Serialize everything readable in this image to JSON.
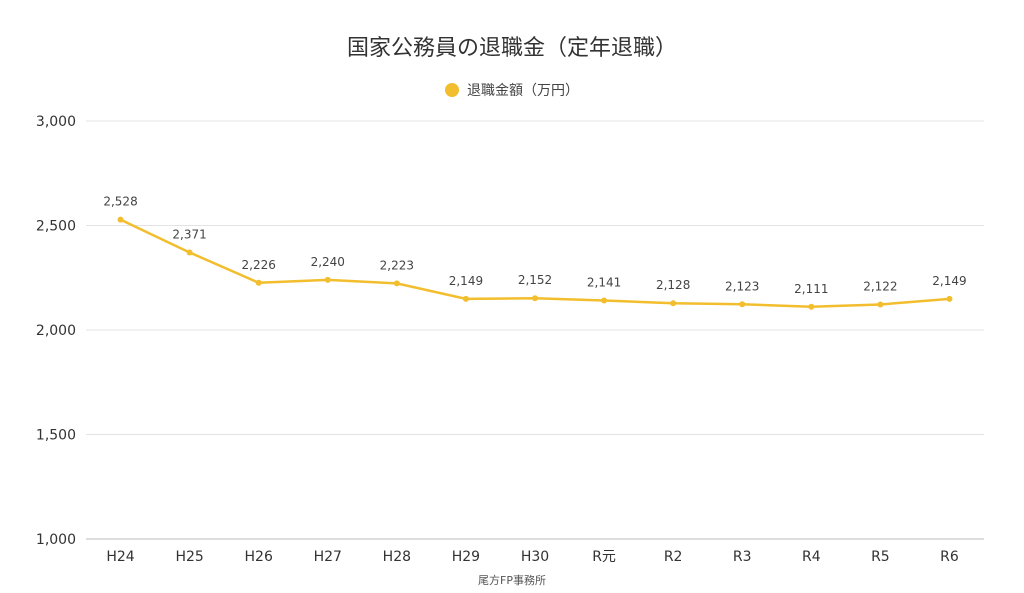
{
  "chart_data": {
    "type": "line",
    "title": "国家公務員の退職金（定年退職）",
    "categories": [
      "H24",
      "H25",
      "H26",
      "H27",
      "H28",
      "H29",
      "H30",
      "R元",
      "R2",
      "R3",
      "R4",
      "R5",
      "R6"
    ],
    "series": [
      {
        "name": "退職金額（万円）",
        "values": [
          2528,
          2371,
          2226,
          2240,
          2223,
          2149,
          2152,
          2141,
          2128,
          2123,
          2111,
          2122,
          2149
        ],
        "color": "#F2BE2E"
      }
    ],
    "data_labels": [
      "2,528",
      "2,371",
      "2,226",
      "2,240",
      "2,223",
      "2,149",
      "2,152",
      "2,141",
      "2,128",
      "2,123",
      "2,111",
      "2,122",
      "2,149"
    ],
    "ylim": [
      1000,
      3000
    ],
    "yticks": [
      1000,
      1500,
      2000,
      2500,
      3000
    ],
    "ytick_labels": [
      "1,000",
      "1,500",
      "2,000",
      "2,500",
      "3,000"
    ],
    "grid": true,
    "legend_position": "top-center",
    "source": "尾方FP事務所"
  }
}
